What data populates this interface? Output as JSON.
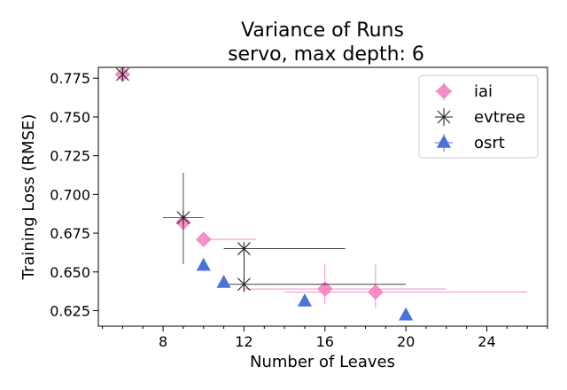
{
  "chart_data": {
    "type": "scatter",
    "title": "Variance of Runs",
    "subtitle": "servo, max depth: 6",
    "xlabel": "Number of Leaves",
    "ylabel": "Training Loss (RMSE)",
    "xlim": [
      4.8,
      27
    ],
    "ylim": [
      0.615,
      0.782
    ],
    "xticks": [
      8,
      12,
      16,
      20,
      24
    ],
    "xminor_step": 1,
    "yticks": [
      0.625,
      0.65,
      0.675,
      0.7,
      0.725,
      0.75,
      0.775
    ],
    "ytick_labels": [
      "0.625",
      "0.650",
      "0.675",
      "0.700",
      "0.725",
      "0.750",
      "0.775"
    ],
    "grid": false,
    "legend_position": "top-right",
    "series": [
      {
        "name": "iai",
        "color": "#f47ec0",
        "marker": "diamond",
        "points": [
          {
            "x": 6,
            "y": 0.7775,
            "xlo": 6,
            "xhi": 6,
            "ylo": 0.7775,
            "yhi": 0.7775
          },
          {
            "x": 9,
            "y": 0.682,
            "xlo": 9,
            "xhi": 9,
            "ylo": 0.682,
            "yhi": 0.682
          },
          {
            "x": 10,
            "y": 0.671,
            "xlo": 10,
            "xhi": 12.6,
            "ylo": 0.671,
            "yhi": 0.671
          },
          {
            "x": 16,
            "y": 0.639,
            "xlo": 12,
            "xhi": 22,
            "ylo": 0.629,
            "yhi": 0.655
          },
          {
            "x": 18.5,
            "y": 0.637,
            "xlo": 14,
            "xhi": 26,
            "ylo": 0.627,
            "yhi": 0.655
          }
        ]
      },
      {
        "name": "evtree",
        "color": "#222222",
        "marker": "star",
        "points": [
          {
            "x": 6,
            "y": 0.7775,
            "xlo": 6,
            "xhi": 6,
            "ylo": 0.7775,
            "yhi": 0.7775
          },
          {
            "x": 9,
            "y": 0.685,
            "xlo": 8,
            "xhi": 10,
            "ylo": 0.655,
            "yhi": 0.714
          },
          {
            "x": 12,
            "y": 0.665,
            "xlo": 11,
            "xhi": 17,
            "ylo": 0.637,
            "yhi": 0.665
          },
          {
            "x": 12,
            "y": 0.642,
            "xlo": 11,
            "xhi": 20,
            "ylo": 0.637,
            "yhi": 0.665
          }
        ]
      },
      {
        "name": "osrt",
        "color": "#4a72d8",
        "marker": "triangle",
        "points": [
          {
            "x": 10,
            "y": 0.654
          },
          {
            "x": 11,
            "y": 0.643
          },
          {
            "x": 15,
            "y": 0.631
          },
          {
            "x": 20,
            "y": 0.622
          }
        ]
      }
    ]
  }
}
